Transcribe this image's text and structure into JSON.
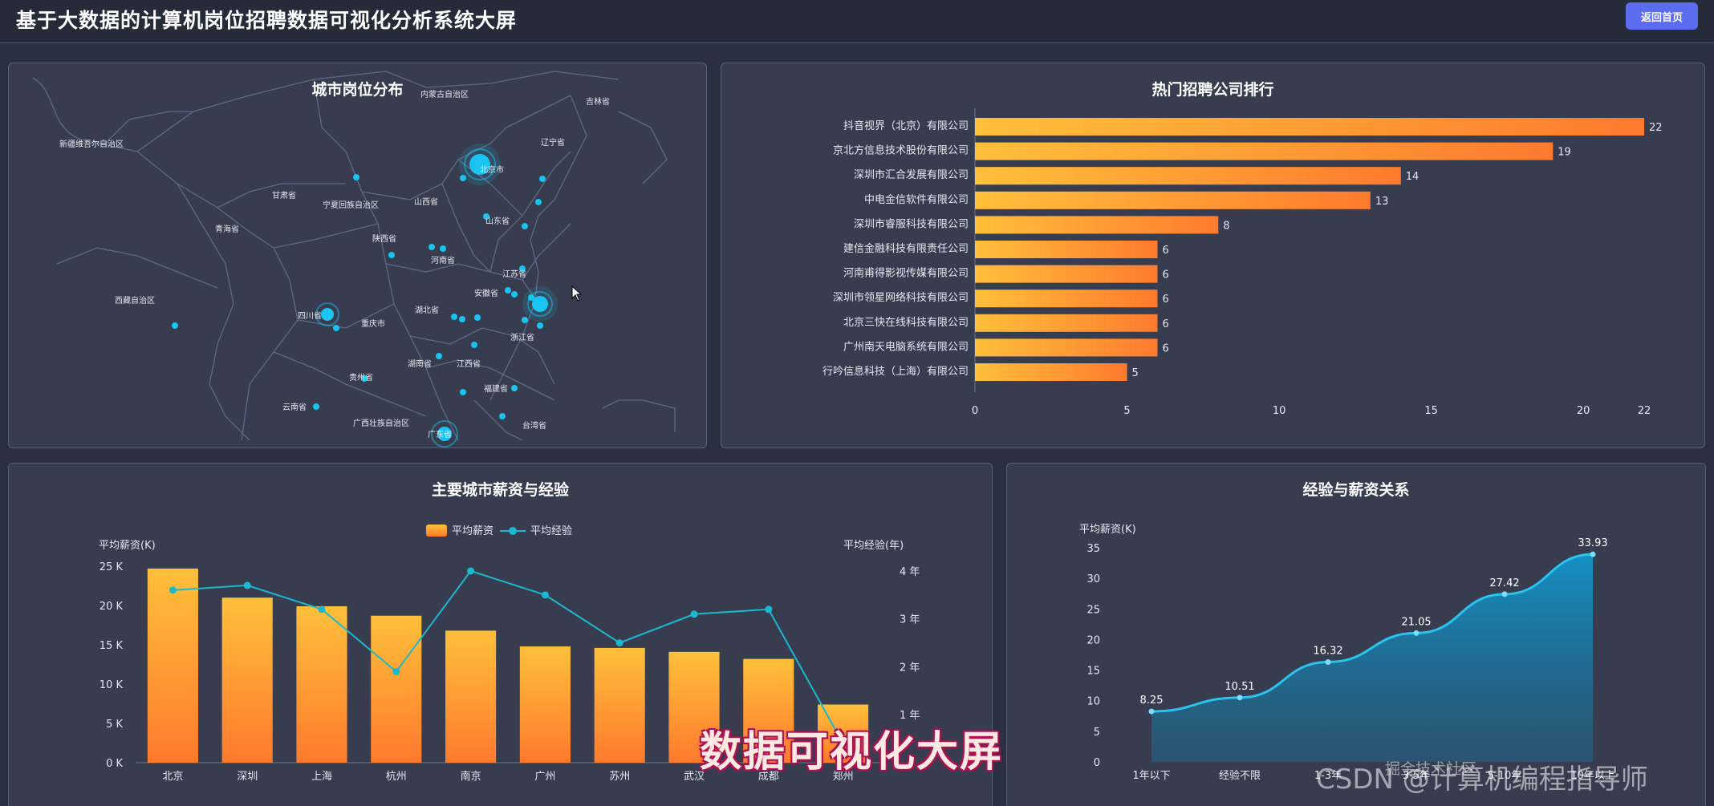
{
  "header": {
    "title": "基于大数据的计算机岗位招聘数据可视化分析系统大屏",
    "back_label": "返回首页"
  },
  "colors": {
    "background": "#2b3040",
    "panel": "#373d4f",
    "accent": "#5b6cf0",
    "bar_start": "#ffc03a",
    "bar_end": "#ff7a2e",
    "line": "#1bb8d0",
    "area": "#1295c9",
    "map_point": "#19c4f2"
  },
  "map_panel": {
    "title": "城市岗位分布",
    "regions": [
      "内蒙古自治区",
      "吉林省",
      "辽宁省",
      "新疆维吾尔自治区",
      "甘肃省",
      "宁夏回族自治区",
      "山西省",
      "山东省",
      "青海省",
      "陕西省",
      "河南省",
      "江苏省",
      "西藏自治区",
      "四川省",
      "重庆市",
      "湖北省",
      "安徽省",
      "浙江省",
      "湖南省",
      "江西省",
      "贵州省",
      "福建省",
      "云南省",
      "广西壮族自治区",
      "广东省",
      "台湾省",
      "北京市"
    ]
  },
  "rank_panel": {
    "title": "热门招聘公司排行"
  },
  "city_panel": {
    "title": "主要城市薪资与经验",
    "legend_salary": "平均薪资",
    "legend_exp": "平均经验"
  },
  "exp_panel": {
    "title": "经验与薪资关系"
  },
  "overlay": {
    "caption": "数据可视化大屏",
    "watermark": "CSDN @计算机编程指导师",
    "watermark2": "掘金技术社区"
  },
  "chart_data": [
    {
      "type": "bar",
      "orientation": "horizontal",
      "title": "热门招聘公司排行",
      "categories": [
        "抖音视界（北京）有限公司",
        "京北方信息技术股份有限公司",
        "深圳市汇合发展有限公司",
        "中电金信软件有限公司",
        "深圳市睿服科技有限公司",
        "建信金融科技有限责任公司",
        "河南甫得影视传媒有限公司",
        "深圳市领星网络科技有限公司",
        "北京三快在线科技有限公司",
        "广州南天电脑系统有限公司",
        "行吟信息科技（上海）有限公司"
      ],
      "values": [
        22,
        19,
        14,
        13,
        8,
        6,
        6,
        6,
        6,
        6,
        5
      ],
      "xlim": [
        0,
        22
      ],
      "xticks": [
        "0",
        "5",
        "10",
        "15",
        "20",
        "22"
      ]
    },
    {
      "type": "bar",
      "title": "主要城市薪资与经验",
      "categories": [
        "北京",
        "深圳",
        "上海",
        "杭州",
        "南京",
        "广州",
        "苏州",
        "武汉",
        "成都",
        "郑州"
      ],
      "series": [
        {
          "name": "平均薪资",
          "type": "bar",
          "axis": "left",
          "values": [
            24.7,
            21.0,
            19.9,
            18.7,
            16.8,
            14.8,
            14.6,
            14.1,
            13.2,
            7.4
          ]
        },
        {
          "name": "平均经验",
          "type": "line",
          "axis": "right",
          "values": [
            3.6,
            3.7,
            3.2,
            1.9,
            4.0,
            3.5,
            2.5,
            3.1,
            3.2,
            0.4
          ]
        }
      ],
      "ylabel_left": "平均薪资(K)",
      "ylabel_right": "平均经验(年)",
      "yticks_left": [
        "0 K",
        "5 K",
        "10 K",
        "15 K",
        "20 K",
        "25 K"
      ],
      "yticks_right": [
        "1 年",
        "2 年",
        "3 年",
        "4 年"
      ],
      "ylim_left": [
        0,
        25
      ],
      "ylim_right": [
        0,
        4.1
      ]
    },
    {
      "type": "area",
      "title": "经验与薪资关系",
      "categories": [
        "1年以下",
        "经验不限",
        "1-3年",
        "3-5年",
        "5-10年",
        "10年以上"
      ],
      "values": [
        8.25,
        10.51,
        16.32,
        21.05,
        27.42,
        33.93
      ],
      "value_labels": [
        "8.25",
        "10.51",
        "16.32",
        "21.05",
        "27.42",
        "33.93"
      ],
      "ylabel": "平均薪资(K)",
      "yticks": [
        "0",
        "5",
        "10",
        "15",
        "20",
        "25",
        "30",
        "35"
      ],
      "ylim": [
        0,
        35
      ]
    }
  ]
}
